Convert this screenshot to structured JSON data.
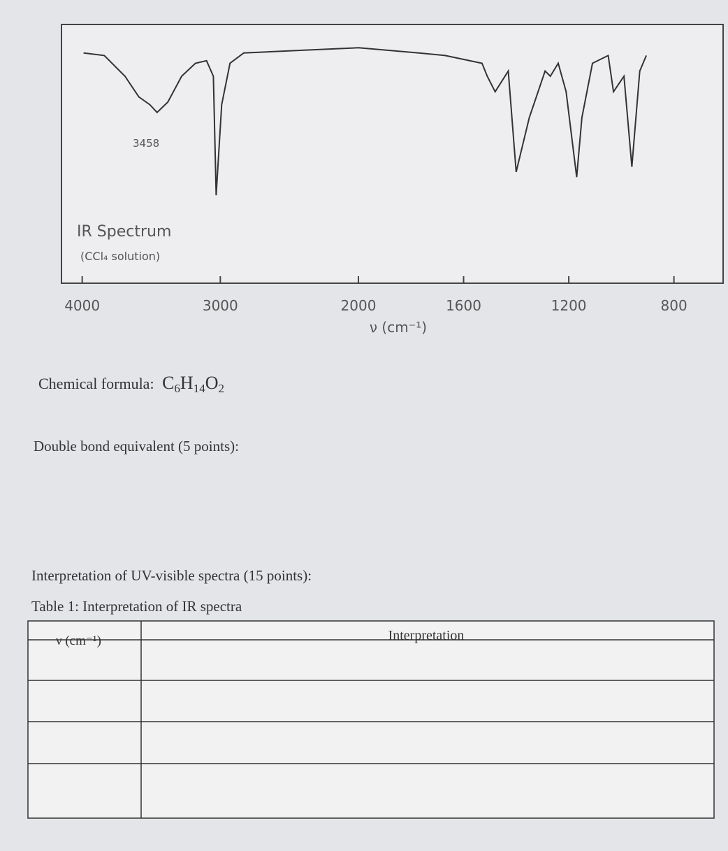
{
  "chart_data": {
    "type": "line",
    "title": "IR Spectrum",
    "subtitle": "(CCl₄ solution)",
    "annotation": "3458",
    "xlabel": "ν (cm⁻¹)",
    "x": [
      3990,
      3840,
      3690,
      3590,
      3510,
      3458,
      3380,
      3280,
      3180,
      3100,
      3050,
      3030,
      2990,
      2930,
      2830,
      2420,
      2000,
      1770,
      1670,
      1530,
      1510,
      1480,
      1430,
      1400,
      1350,
      1290,
      1270,
      1240,
      1210,
      1170,
      1150,
      1110,
      1050,
      1030,
      990,
      960,
      930,
      905
    ],
    "values": [
      89,
      88,
      80,
      72,
      69,
      66,
      70,
      80,
      85,
      86,
      80,
      34,
      69,
      85,
      89,
      90,
      91,
      89,
      88,
      85,
      80,
      74,
      82,
      43,
      64,
      82,
      80,
      85,
      74,
      41,
      64,
      85,
      88,
      74,
      80,
      45,
      82,
      88
    ],
    "color": "#333333",
    "xlim": [
      4150,
      613
    ],
    "scale_break": 2000,
    "ylim": [
      0,
      100
    ],
    "xticks": [
      4000,
      3000,
      2000,
      1600,
      1200,
      800
    ]
  },
  "formula": {
    "label": "Chemical formula:",
    "parts": [
      "C",
      "6",
      "H",
      "14",
      "O",
      "2"
    ]
  },
  "dbe": "Double bond equivalent (5 points):",
  "uv": "Interpretation of UV-visible spectra (15 points):",
  "table": {
    "caption": "Table 1: Interpretation of IR spectra",
    "header": [
      "ν (cm⁻¹)",
      "Interpretation"
    ]
  }
}
